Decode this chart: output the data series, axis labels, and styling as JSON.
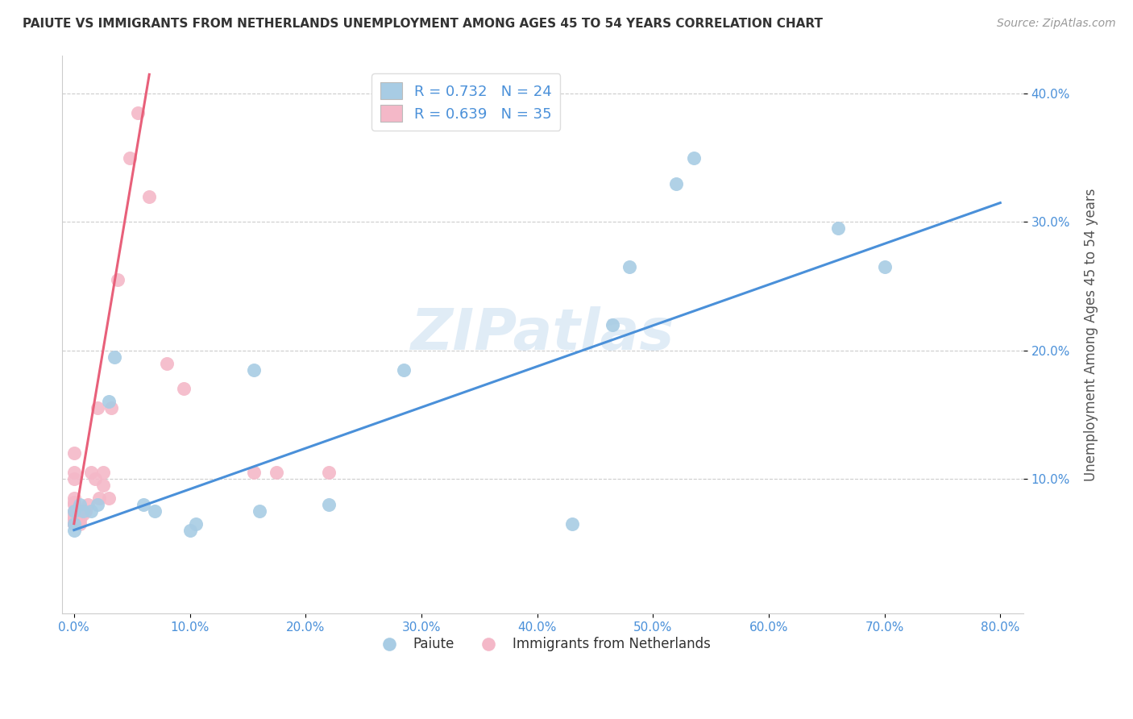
{
  "title": "PAIUTE VS IMMIGRANTS FROM NETHERLANDS UNEMPLOYMENT AMONG AGES 45 TO 54 YEARS CORRELATION CHART",
  "source": "Source: ZipAtlas.com",
  "ylabel": "Unemployment Among Ages 45 to 54 years",
  "xlim": [
    -0.01,
    0.82
  ],
  "ylim": [
    -0.005,
    0.43
  ],
  "xticks": [
    0.0,
    0.1,
    0.2,
    0.3,
    0.4,
    0.5,
    0.6,
    0.7,
    0.8
  ],
  "xticklabels": [
    "0.0%",
    "10.0%",
    "20.0%",
    "30.0%",
    "40.0%",
    "50.0%",
    "60.0%",
    "70.0%",
    "80.0%"
  ],
  "yticks": [
    0.1,
    0.2,
    0.3,
    0.4
  ],
  "yticklabels": [
    "10.0%",
    "20.0%",
    "30.0%",
    "40.0%"
  ],
  "legend1_label": "R = 0.732   N = 24",
  "legend2_label": "R = 0.639   N = 35",
  "legend_bottom_label1": "Paiute",
  "legend_bottom_label2": "Immigrants from Netherlands",
  "blue_color": "#a8cce4",
  "pink_color": "#f4b8c8",
  "blue_line_color": "#4a90d9",
  "pink_line_color": "#e8607a",
  "watermark": "ZIPatlas",
  "blue_scatter": [
    [
      0.0,
      0.065
    ],
    [
      0.0,
      0.075
    ],
    [
      0.0,
      0.06
    ],
    [
      0.005,
      0.08
    ],
    [
      0.008,
      0.075
    ],
    [
      0.015,
      0.075
    ],
    [
      0.02,
      0.08
    ],
    [
      0.03,
      0.16
    ],
    [
      0.035,
      0.195
    ],
    [
      0.06,
      0.08
    ],
    [
      0.07,
      0.075
    ],
    [
      0.1,
      0.06
    ],
    [
      0.105,
      0.065
    ],
    [
      0.155,
      0.185
    ],
    [
      0.16,
      0.075
    ],
    [
      0.22,
      0.08
    ],
    [
      0.285,
      0.185
    ],
    [
      0.43,
      0.065
    ],
    [
      0.465,
      0.22
    ],
    [
      0.48,
      0.265
    ],
    [
      0.52,
      0.33
    ],
    [
      0.535,
      0.35
    ],
    [
      0.66,
      0.295
    ],
    [
      0.7,
      0.265
    ]
  ],
  "pink_scatter": [
    [
      0.0,
      0.065
    ],
    [
      0.0,
      0.065
    ],
    [
      0.0,
      0.065
    ],
    [
      0.0,
      0.068
    ],
    [
      0.0,
      0.07
    ],
    [
      0.0,
      0.072
    ],
    [
      0.0,
      0.075
    ],
    [
      0.0,
      0.08
    ],
    [
      0.0,
      0.082
    ],
    [
      0.0,
      0.085
    ],
    [
      0.0,
      0.1
    ],
    [
      0.0,
      0.105
    ],
    [
      0.0,
      0.12
    ],
    [
      0.005,
      0.065
    ],
    [
      0.005,
      0.068
    ],
    [
      0.008,
      0.072
    ],
    [
      0.01,
      0.075
    ],
    [
      0.012,
      0.08
    ],
    [
      0.015,
      0.105
    ],
    [
      0.018,
      0.1
    ],
    [
      0.02,
      0.155
    ],
    [
      0.022,
      0.085
    ],
    [
      0.025,
      0.095
    ],
    [
      0.025,
      0.105
    ],
    [
      0.03,
      0.085
    ],
    [
      0.032,
      0.155
    ],
    [
      0.038,
      0.255
    ],
    [
      0.048,
      0.35
    ],
    [
      0.055,
      0.385
    ],
    [
      0.065,
      0.32
    ],
    [
      0.08,
      0.19
    ],
    [
      0.095,
      0.17
    ],
    [
      0.155,
      0.105
    ],
    [
      0.175,
      0.105
    ],
    [
      0.22,
      0.105
    ]
  ],
  "blue_line_x": [
    0.0,
    0.8
  ],
  "blue_line_y": [
    0.06,
    0.315
  ],
  "pink_line_x": [
    0.0,
    0.065
  ],
  "pink_line_y": [
    0.065,
    0.415
  ]
}
